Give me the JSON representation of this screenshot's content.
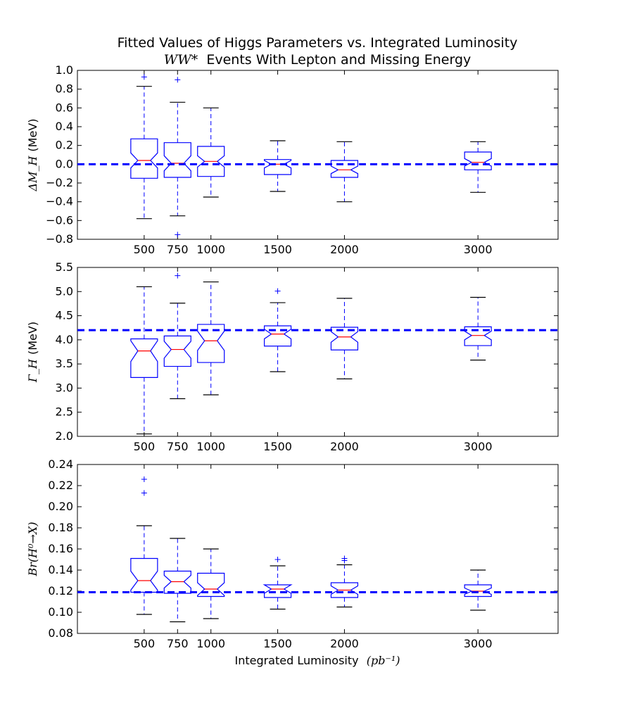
{
  "chart_data": {
    "type": "boxplot",
    "title_line1": "Fitted Values of Higgs Parameters vs. Integrated Luminosity",
    "title_line2_math": "WW*",
    "title_line2_text": "Events With Lepton and Missing Energy",
    "xlabel_text": "Integrated Luminosity",
    "xlabel_math": "(pb⁻¹)",
    "xlim": [
      0,
      3600
    ],
    "x": [
      500,
      750,
      1000,
      1500,
      2000,
      3000
    ],
    "panels": [
      {
        "ylabel_math": "ΔM_H",
        "ylabel_unit": "(MeV)",
        "ylim": [
          -0.8,
          1.0
        ],
        "yticks": [
          -0.8,
          -0.6,
          -0.4,
          -0.2,
          0.0,
          0.2,
          0.4,
          0.6,
          0.8,
          1.0
        ],
        "yticklabels": [
          "−0.8",
          "−0.6",
          "−0.4",
          "−0.2",
          "0.0",
          "0.2",
          "0.4",
          "0.6",
          "0.8",
          "1.0"
        ],
        "reference": 0.0,
        "boxes": [
          {
            "x": 500,
            "whisker_low": -0.58,
            "q1": -0.15,
            "median": 0.04,
            "q3": 0.27,
            "whisker_high": 0.83,
            "notch": [
              -0.04,
              0.12
            ],
            "outliers": [
              0.93
            ]
          },
          {
            "x": 750,
            "whisker_low": -0.55,
            "q1": -0.14,
            "median": 0.01,
            "q3": 0.23,
            "whisker_high": 0.66,
            "notch": [
              -0.07,
              0.09
            ],
            "outliers": [
              0.9,
              -0.75
            ]
          },
          {
            "x": 1000,
            "whisker_low": -0.35,
            "q1": -0.13,
            "median": 0.03,
            "q3": 0.19,
            "whisker_high": 0.6,
            "notch": [
              -0.03,
              0.09
            ],
            "outliers": []
          },
          {
            "x": 1500,
            "whisker_low": -0.29,
            "q1": -0.11,
            "median": 0.0,
            "q3": 0.05,
            "whisker_high": 0.25,
            "notch": [
              -0.04,
              0.04
            ],
            "outliers": []
          },
          {
            "x": 2000,
            "whisker_low": -0.4,
            "q1": -0.14,
            "median": -0.06,
            "q3": 0.04,
            "whisker_high": 0.24,
            "notch": [
              -0.1,
              -0.02
            ],
            "outliers": []
          },
          {
            "x": 3000,
            "whisker_low": -0.3,
            "q1": -0.06,
            "median": 0.02,
            "q3": 0.13,
            "whisker_high": 0.24,
            "notch": [
              -0.02,
              0.06
            ],
            "outliers": []
          }
        ]
      },
      {
        "ylabel_math": "Γ_H",
        "ylabel_unit": "(MeV)",
        "ylim": [
          2.0,
          5.5
        ],
        "yticks": [
          2.0,
          2.5,
          3.0,
          3.5,
          4.0,
          4.5,
          5.0,
          5.5
        ],
        "yticklabels": [
          "2.0",
          "2.5",
          "3.0",
          "3.5",
          "4.0",
          "4.5",
          "5.0",
          "5.5"
        ],
        "reference": 4.2,
        "boxes": [
          {
            "x": 500,
            "whisker_low": 2.05,
            "q1": 3.22,
            "median": 3.77,
            "q3": 4.02,
            "whisker_high": 5.1,
            "notch": [
              3.55,
              3.98
            ],
            "outliers": []
          },
          {
            "x": 750,
            "whisker_low": 2.78,
            "q1": 3.45,
            "median": 3.8,
            "q3": 4.08,
            "whisker_high": 4.76,
            "notch": [
              3.62,
              3.97
            ],
            "outliers": [
              5.33
            ]
          },
          {
            "x": 1000,
            "whisker_low": 2.86,
            "q1": 3.53,
            "median": 3.98,
            "q3": 4.32,
            "whisker_high": 5.2,
            "notch": [
              3.78,
              4.18
            ],
            "outliers": []
          },
          {
            "x": 1500,
            "whisker_low": 3.34,
            "q1": 3.87,
            "median": 4.12,
            "q3": 4.29,
            "whisker_high": 4.77,
            "notch": [
              4.02,
              4.22
            ],
            "outliers": [
              5.01
            ]
          },
          {
            "x": 2000,
            "whisker_low": 3.19,
            "q1": 3.79,
            "median": 4.06,
            "q3": 4.26,
            "whisker_high": 4.86,
            "notch": [
              3.95,
              4.17
            ],
            "outliers": []
          },
          {
            "x": 3000,
            "whisker_low": 3.58,
            "q1": 3.88,
            "median": 4.09,
            "q3": 4.27,
            "whisker_high": 4.88,
            "notch": [
              4.0,
              4.18
            ],
            "outliers": []
          }
        ]
      },
      {
        "ylabel_math": "Br(H⁰→X)",
        "ylabel_unit": "",
        "ylim": [
          0.08,
          0.24
        ],
        "yticks": [
          0.08,
          0.1,
          0.12,
          0.14,
          0.16,
          0.18,
          0.2,
          0.22,
          0.24
        ],
        "yticklabels": [
          "0.08",
          "0.10",
          "0.12",
          "0.14",
          "0.16",
          "0.18",
          "0.20",
          "0.22",
          "0.24"
        ],
        "reference": 0.119,
        "boxes": [
          {
            "x": 500,
            "whisker_low": 0.098,
            "q1": 0.119,
            "median": 0.13,
            "q3": 0.151,
            "whisker_high": 0.182,
            "notch": [
              0.121,
              0.139
            ],
            "outliers": [
              0.226,
              0.213
            ]
          },
          {
            "x": 750,
            "whisker_low": 0.091,
            "q1": 0.118,
            "median": 0.129,
            "q3": 0.139,
            "whisker_high": 0.17,
            "notch": [
              0.123,
              0.135
            ],
            "outliers": []
          },
          {
            "x": 1000,
            "whisker_low": 0.094,
            "q1": 0.115,
            "median": 0.122,
            "q3": 0.137,
            "whisker_high": 0.16,
            "notch": [
              0.116,
              0.128
            ],
            "outliers": []
          },
          {
            "x": 1500,
            "whisker_low": 0.103,
            "q1": 0.114,
            "median": 0.122,
            "q3": 0.126,
            "whisker_high": 0.144,
            "notch": [
              0.118,
              0.126
            ],
            "outliers": [
              0.15
            ]
          },
          {
            "x": 2000,
            "whisker_low": 0.105,
            "q1": 0.114,
            "median": 0.121,
            "q3": 0.128,
            "whisker_high": 0.145,
            "notch": [
              0.117,
              0.125
            ],
            "outliers": [
              0.149,
              0.151
            ]
          },
          {
            "x": 3000,
            "whisker_low": 0.102,
            "q1": 0.115,
            "median": 0.12,
            "q3": 0.126,
            "whisker_high": 0.14,
            "notch": [
              0.117,
              0.123
            ],
            "outliers": []
          }
        ]
      }
    ],
    "colors": {
      "box": "#0000ff",
      "median": "#ff0000",
      "whisker_cap": "#000000",
      "reference_line": "#0000ff"
    }
  }
}
